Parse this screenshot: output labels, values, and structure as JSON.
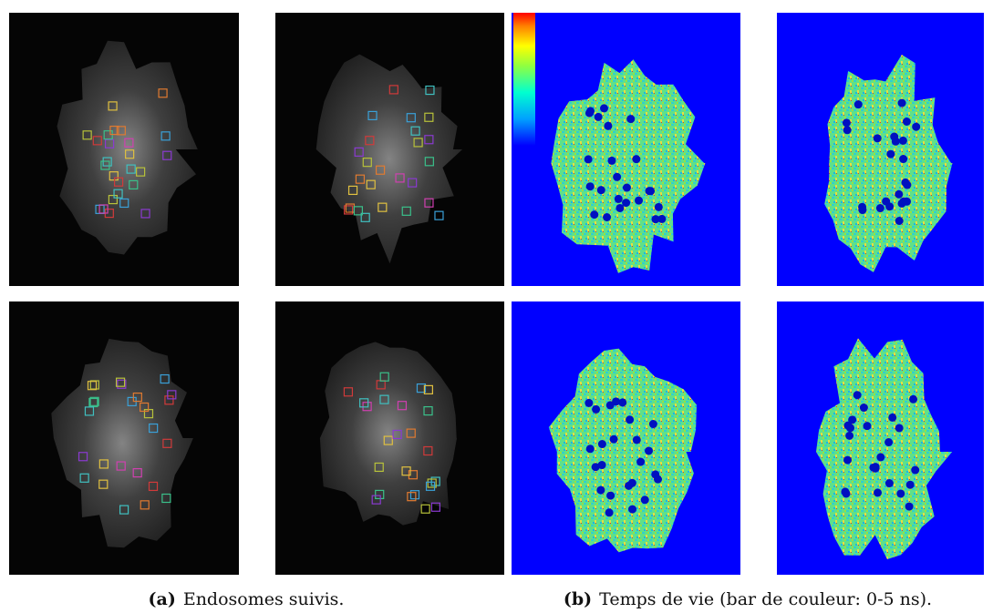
{
  "figure": {
    "subfigures": [
      {
        "label": "(a)",
        "caption": "Endosomes suivis."
      },
      {
        "label": "(b)",
        "caption": "Temps de vie (bar de couleur: 0-5 ns)."
      }
    ]
  }
}
